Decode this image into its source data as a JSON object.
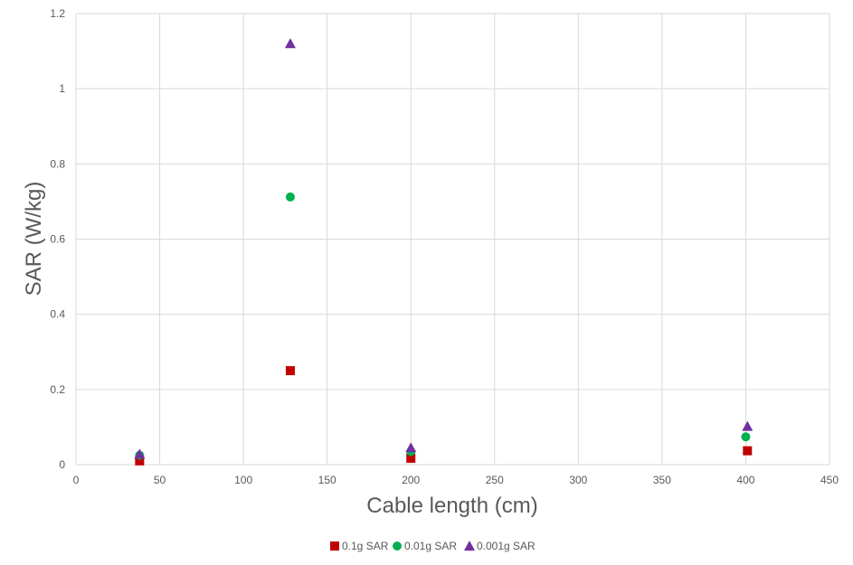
{
  "chart_data": {
    "type": "scatter",
    "xlabel": "Cable length (cm)",
    "ylabel": "SAR (W/kg)",
    "xlim": [
      0,
      450
    ],
    "ylim": [
      0,
      1.2
    ],
    "x_ticks": [
      0,
      50,
      100,
      150,
      200,
      250,
      300,
      350,
      400,
      450
    ],
    "y_ticks": [
      0,
      0.2,
      0.4,
      0.6,
      0.8,
      1,
      1.2
    ],
    "x_tick_labels": [
      "0",
      "50",
      "100",
      "150",
      "200",
      "250",
      "300",
      "350",
      "400",
      "450"
    ],
    "y_tick_labels": [
      "0",
      "0.2",
      "0.4",
      "0.6",
      "0.8",
      "1",
      "1.2"
    ],
    "grid": true,
    "legend_position": "bottom",
    "series": [
      {
        "name": "0.1g SAR",
        "marker": "square",
        "color": "#c00000",
        "points": [
          {
            "x": 38,
            "y": 0.01
          },
          {
            "x": 128,
            "y": 0.25
          },
          {
            "x": 200,
            "y": 0.017
          },
          {
            "x": 401,
            "y": 0.037
          }
        ]
      },
      {
        "name": "0.01g SAR",
        "marker": "circle",
        "color": "#00b050",
        "points": [
          {
            "x": 38,
            "y": 0.025
          },
          {
            "x": 128,
            "y": 0.712
          },
          {
            "x": 200,
            "y": 0.035
          },
          {
            "x": 400,
            "y": 0.074
          }
        ]
      },
      {
        "name": "0.001g SAR",
        "marker": "triangle",
        "color": "#7030a0",
        "points": [
          {
            "x": 38,
            "y": 0.028
          },
          {
            "x": 128,
            "y": 1.12
          },
          {
            "x": 200,
            "y": 0.045
          },
          {
            "x": 401,
            "y": 0.102
          }
        ]
      }
    ]
  }
}
